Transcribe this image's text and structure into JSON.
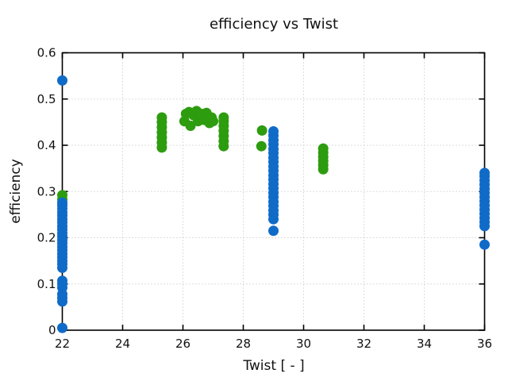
{
  "chart_data": {
    "type": "scatter",
    "title": "efficiency vs Twist",
    "xlabel": "Twist [ - ]",
    "ylabel": "efficiency",
    "xlim": [
      22,
      36
    ],
    "ylim": [
      0,
      0.6
    ],
    "xticks": [
      22,
      24,
      26,
      28,
      30,
      32,
      34,
      36
    ],
    "xtick_labels": [
      "22",
      "24",
      "26",
      "28",
      "30",
      "32",
      "34",
      "36"
    ],
    "yticks": [
      0,
      0.1,
      0.2,
      0.3,
      0.4,
      0.5,
      0.6
    ],
    "ytick_labels": [
      "0",
      "0.1",
      "0.2",
      "0.3",
      "0.4",
      "0.5",
      "0.6"
    ],
    "grid": "dotted",
    "grid_color": "#bbbbbb",
    "frame_color": "#000000",
    "legend": "none",
    "marker_diameter_px": 13,
    "series": [
      {
        "name": "green-series",
        "color": "#2D9C0F",
        "points": [
          [
            22,
            0.283
          ],
          [
            22,
            0.292
          ],
          [
            25.3,
            0.395
          ],
          [
            25.3,
            0.406
          ],
          [
            25.3,
            0.417
          ],
          [
            25.3,
            0.428
          ],
          [
            25.3,
            0.439
          ],
          [
            25.3,
            0.45
          ],
          [
            25.3,
            0.46
          ],
          [
            26.05,
            0.452
          ],
          [
            26.1,
            0.468
          ],
          [
            26.2,
            0.472
          ],
          [
            26.25,
            0.442
          ],
          [
            26.35,
            0.465
          ],
          [
            26.45,
            0.474
          ],
          [
            26.5,
            0.452
          ],
          [
            26.6,
            0.468
          ],
          [
            26.7,
            0.455
          ],
          [
            26.78,
            0.47
          ],
          [
            26.88,
            0.448
          ],
          [
            26.95,
            0.46
          ],
          [
            27.0,
            0.452
          ],
          [
            27.35,
            0.398
          ],
          [
            27.35,
            0.409
          ],
          [
            27.35,
            0.42
          ],
          [
            27.35,
            0.431
          ],
          [
            27.35,
            0.442
          ],
          [
            27.35,
            0.452
          ],
          [
            27.35,
            0.46
          ],
          [
            28.6,
            0.398
          ],
          [
            28.62,
            0.432
          ],
          [
            30.65,
            0.348
          ],
          [
            30.65,
            0.357
          ],
          [
            30.65,
            0.366
          ],
          [
            30.65,
            0.375
          ],
          [
            30.65,
            0.384
          ],
          [
            30.65,
            0.393
          ]
        ]
      },
      {
        "name": "blue-series",
        "color": "#106BC8",
        "points": [
          [
            22,
            0.005
          ],
          [
            22,
            0.062
          ],
          [
            22,
            0.07
          ],
          [
            22,
            0.078
          ],
          [
            22,
            0.092
          ],
          [
            22,
            0.1
          ],
          [
            22,
            0.107
          ],
          [
            22,
            0.135
          ],
          [
            22,
            0.143
          ],
          [
            22,
            0.15
          ],
          [
            22,
            0.158
          ],
          [
            22,
            0.165
          ],
          [
            22,
            0.173
          ],
          [
            22,
            0.18
          ],
          [
            22,
            0.188
          ],
          [
            22,
            0.195
          ],
          [
            22,
            0.203
          ],
          [
            22,
            0.21
          ],
          [
            22,
            0.218
          ],
          [
            22,
            0.225
          ],
          [
            22,
            0.233
          ],
          [
            22,
            0.24
          ],
          [
            22,
            0.248
          ],
          [
            22,
            0.255
          ],
          [
            22,
            0.263
          ],
          [
            22,
            0.27
          ],
          [
            22,
            0.276
          ],
          [
            22,
            0.54
          ],
          [
            29.0,
            0.215
          ],
          [
            29.0,
            0.24
          ],
          [
            29.0,
            0.25
          ],
          [
            29.0,
            0.259
          ],
          [
            29.0,
            0.269
          ],
          [
            29.0,
            0.278
          ],
          [
            29.0,
            0.288
          ],
          [
            29.0,
            0.297
          ],
          [
            29.0,
            0.307
          ],
          [
            29.0,
            0.316
          ],
          [
            29.0,
            0.326
          ],
          [
            29.0,
            0.335
          ],
          [
            29.0,
            0.345
          ],
          [
            29.0,
            0.354
          ],
          [
            29.0,
            0.364
          ],
          [
            29.0,
            0.373
          ],
          [
            29.0,
            0.383
          ],
          [
            29.0,
            0.392
          ],
          [
            29.0,
            0.402
          ],
          [
            29.0,
            0.411
          ],
          [
            29.0,
            0.421
          ],
          [
            29.0,
            0.43
          ],
          [
            36,
            0.185
          ],
          [
            36,
            0.225
          ],
          [
            36,
            0.234
          ],
          [
            36,
            0.243
          ],
          [
            36,
            0.252
          ],
          [
            36,
            0.261
          ],
          [
            36,
            0.27
          ],
          [
            36,
            0.279
          ],
          [
            36,
            0.288
          ],
          [
            36,
            0.297
          ],
          [
            36,
            0.306
          ],
          [
            36,
            0.315
          ],
          [
            36,
            0.324
          ],
          [
            36,
            0.333
          ],
          [
            36,
            0.34
          ]
        ]
      }
    ]
  }
}
